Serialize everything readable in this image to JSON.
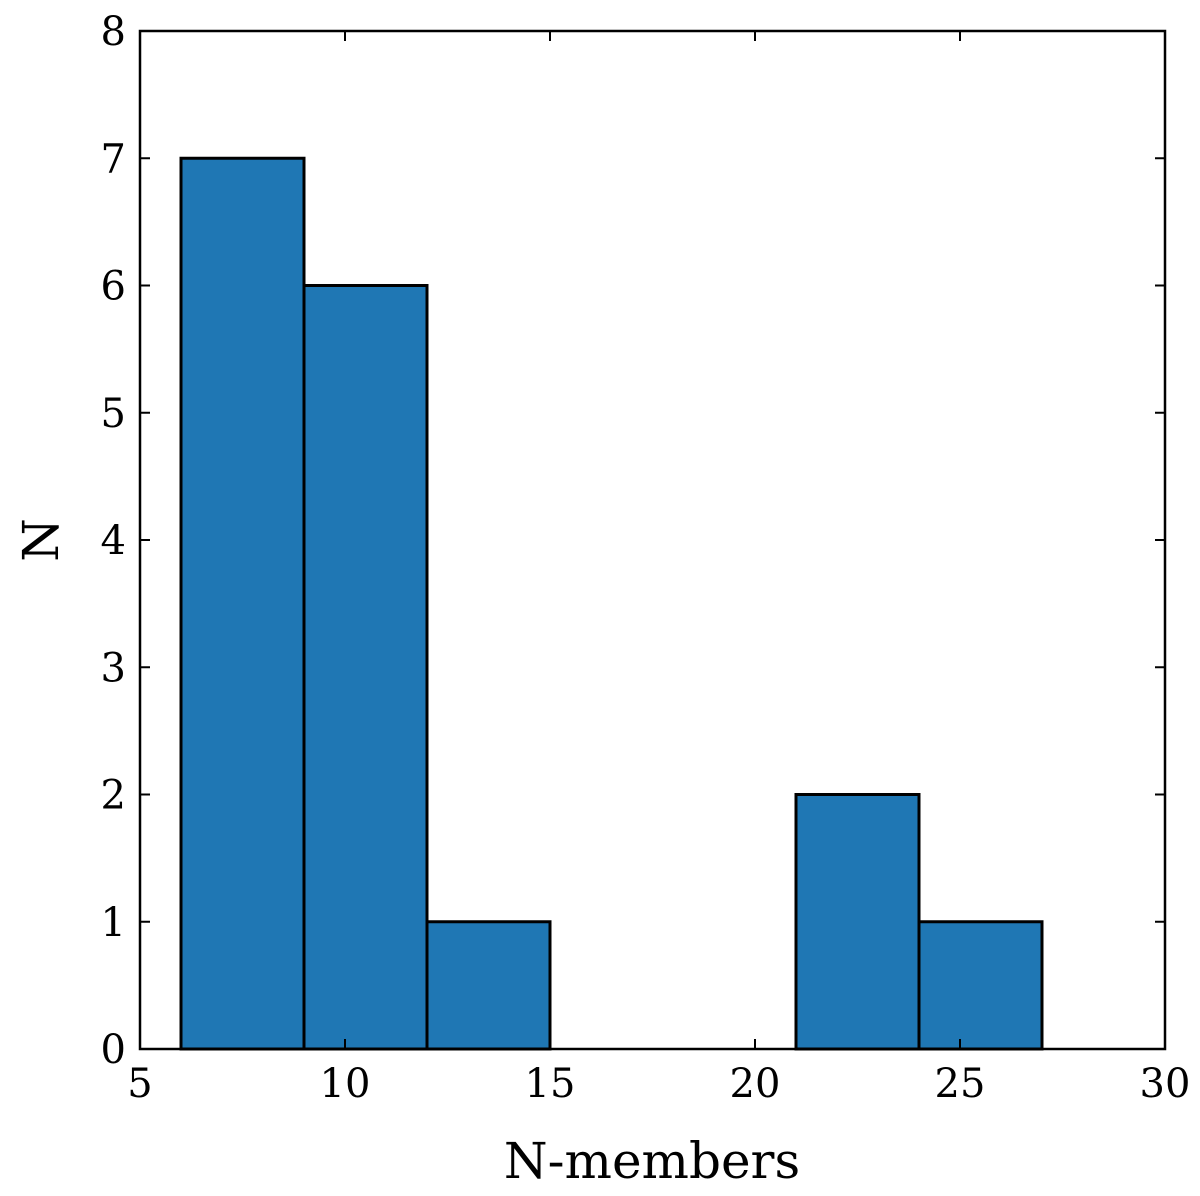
{
  "chart_data": {
    "type": "bar",
    "subtype": "histogram",
    "bins": [
      {
        "x0": 6,
        "x1": 9,
        "count": 7
      },
      {
        "x0": 9,
        "x1": 12,
        "count": 6
      },
      {
        "x0": 12,
        "x1": 15,
        "count": 1
      },
      {
        "x0": 15,
        "x1": 18,
        "count": 0
      },
      {
        "x0": 18,
        "x1": 21,
        "count": 0
      },
      {
        "x0": 21,
        "x1": 24,
        "count": 2
      },
      {
        "x0": 24,
        "x1": 27,
        "count": 1
      }
    ],
    "xlabel": "N-members",
    "ylabel": "N",
    "xlim": [
      5,
      30
    ],
    "ylim": [
      0,
      8
    ],
    "xticks": [
      "5",
      "10",
      "15",
      "20",
      "25",
      "30"
    ],
    "yticks": [
      "0",
      "1",
      "2",
      "3",
      "4",
      "5",
      "6",
      "7",
      "8"
    ],
    "bar_color": "#1f77b4",
    "edge_color": "#000000",
    "grid": false,
    "legend": "none"
  }
}
